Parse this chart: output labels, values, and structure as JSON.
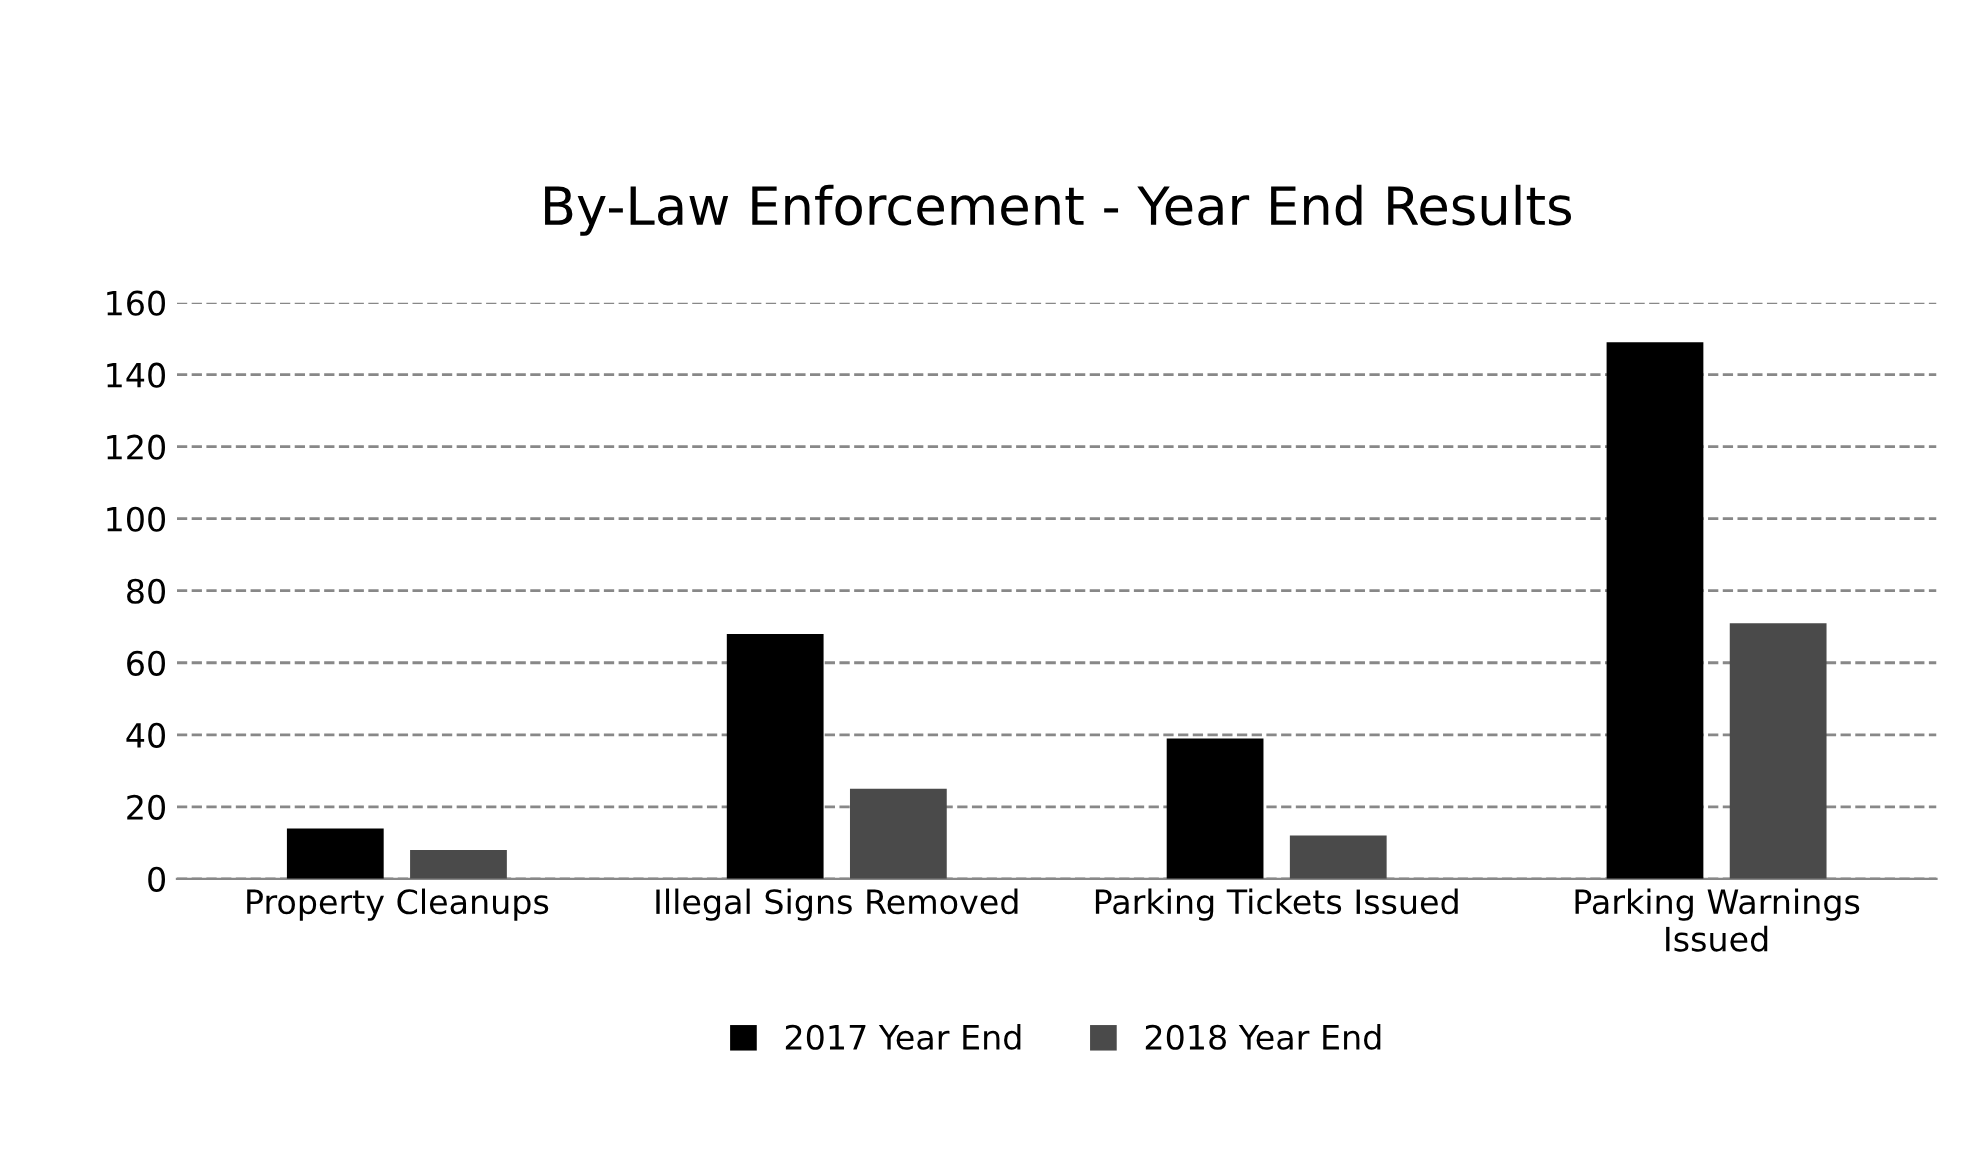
{
  "chart_data": {
    "type": "bar",
    "title": "By-Law Enforcement - Year End Results",
    "categories": [
      "Property Cleanups",
      "Illegal Signs Removed",
      "Parking Tickets Issued",
      "Parking Warnings\nIssued"
    ],
    "series": [
      {
        "name": "2017 Year End",
        "color": "#000000",
        "values": [
          14,
          68,
          39,
          149
        ]
      },
      {
        "name": "2018 Year End",
        "color": "#4a4a4a",
        "values": [
          8,
          25,
          12,
          71
        ]
      }
    ],
    "ylim": [
      0,
      160
    ],
    "yticks": [
      0,
      20,
      40,
      60,
      80,
      100,
      120,
      140,
      160
    ],
    "grid": "y",
    "legend": "bottom"
  }
}
